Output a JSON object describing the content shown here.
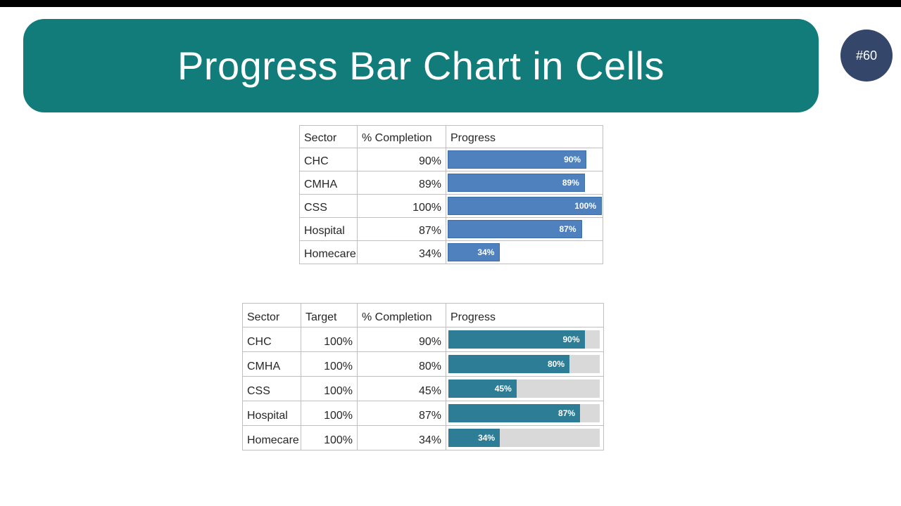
{
  "banner": {
    "title": "Progress Bar Chart in Cells"
  },
  "badge": {
    "label": "#60"
  },
  "colors": {
    "banner_teal": "#127C7B",
    "badge_navy": "#34476B",
    "bar_blue": "#4E81BD",
    "bar_blue_border": "#3D6DA8",
    "bar_teal": "#2E7D96",
    "bar_track_gray": "#D9D9D9",
    "table_border": "#BFBFBF",
    "text_dark": "#262626"
  },
  "table1": {
    "headers": [
      "Sector",
      "% Completion",
      "Progress"
    ],
    "rows": [
      {
        "sector": "CHC",
        "completion": "90%",
        "progress_pct": 90,
        "bar_label": "90%"
      },
      {
        "sector": "CMHA",
        "completion": "89%",
        "progress_pct": 89,
        "bar_label": "89%"
      },
      {
        "sector": "CSS",
        "completion": "100%",
        "progress_pct": 100,
        "bar_label": "100%"
      },
      {
        "sector": "Hospital",
        "completion": "87%",
        "progress_pct": 87,
        "bar_label": "87%"
      },
      {
        "sector": "Homecare",
        "completion": "34%",
        "progress_pct": 34,
        "bar_label": "34%"
      }
    ]
  },
  "table2": {
    "headers": [
      "Sector",
      "Target",
      "% Completion",
      "Progress"
    ],
    "rows": [
      {
        "sector": "CHC",
        "target": "100%",
        "completion": "90%",
        "progress_pct": 90,
        "bar_label": "90%"
      },
      {
        "sector": "CMHA",
        "target": "100%",
        "completion": "80%",
        "progress_pct": 80,
        "bar_label": "80%"
      },
      {
        "sector": "CSS",
        "target": "100%",
        "completion": "45%",
        "progress_pct": 45,
        "bar_label": "45%"
      },
      {
        "sector": "Hospital",
        "target": "100%",
        "completion": "87%",
        "progress_pct": 87,
        "bar_label": "87%"
      },
      {
        "sector": "Homecare",
        "target": "100%",
        "completion": "34%",
        "progress_pct": 34,
        "bar_label": "34%"
      }
    ]
  },
  "chart_data": [
    {
      "type": "bar",
      "orientation": "horizontal",
      "title": "Progress",
      "categories": [
        "CHC",
        "CMHA",
        "CSS",
        "Hospital",
        "Homecare"
      ],
      "values": [
        90,
        89,
        100,
        87,
        34
      ],
      "data_labels": [
        "90%",
        "89%",
        "100%",
        "87%",
        "34%"
      ],
      "xlabel": "% Completion",
      "ylabel": "Sector",
      "xlim": [
        0,
        100
      ],
      "grid": false,
      "bar_color": "#4E81BD"
    },
    {
      "type": "bar",
      "orientation": "horizontal",
      "title": "Progress vs Target",
      "categories": [
        "CHC",
        "CMHA",
        "CSS",
        "Hospital",
        "Homecare"
      ],
      "series": [
        {
          "name": "Target",
          "values": [
            100,
            100,
            100,
            100,
            100
          ]
        },
        {
          "name": "% Completion",
          "values": [
            90,
            80,
            45,
            87,
            34
          ]
        }
      ],
      "data_labels": [
        "90%",
        "80%",
        "45%",
        "87%",
        "34%"
      ],
      "xlim": [
        0,
        100
      ],
      "grid": false,
      "bar_color": "#2E7D96",
      "track_color": "#D9D9D9"
    }
  ]
}
